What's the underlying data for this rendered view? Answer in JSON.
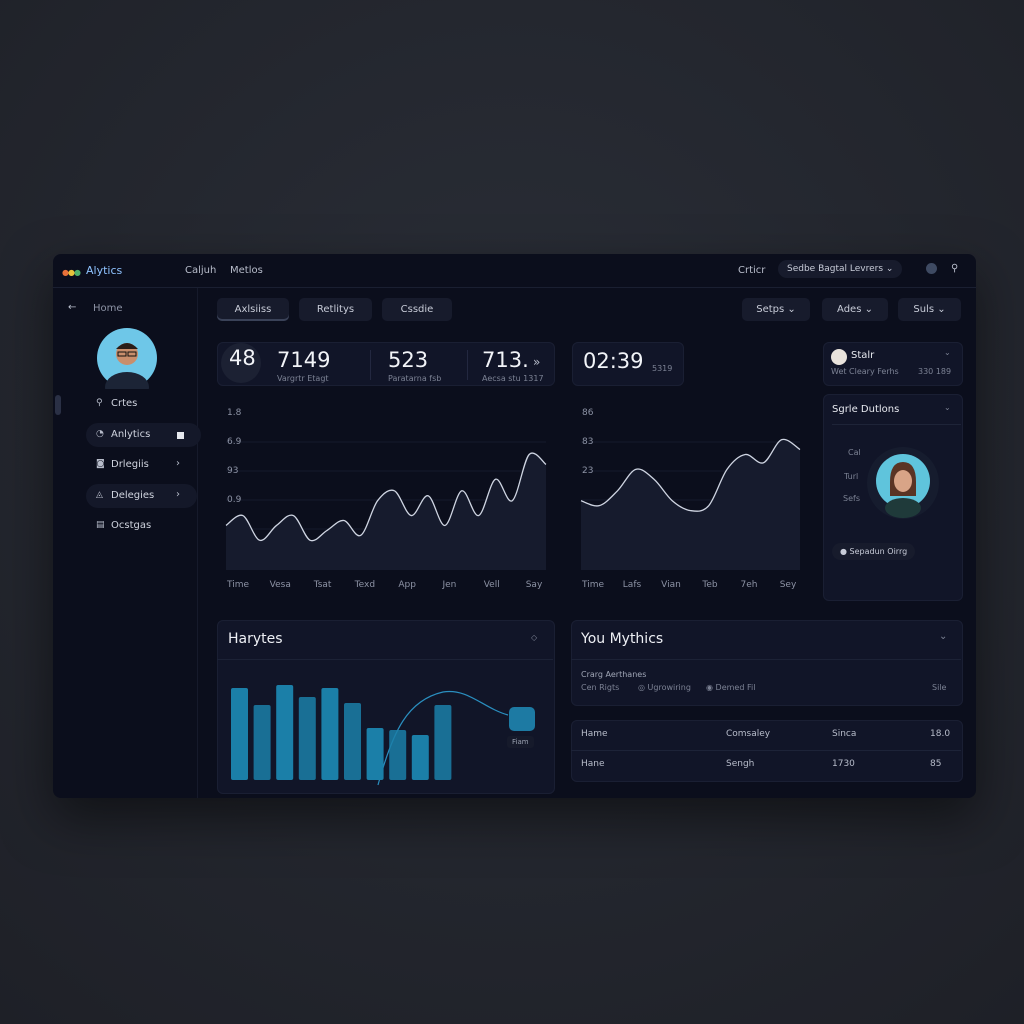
{
  "header": {
    "logo": "Alytics",
    "nav": [
      "Caljuh",
      "Metlos"
    ],
    "label": "Crticr",
    "account": "Sedbe Bagtal Levrers"
  },
  "sidebar": {
    "back": "Home",
    "items": [
      "Crtes",
      "Anlytics",
      "Drlegiis",
      "Delegies",
      "Ocstgas"
    ]
  },
  "toolbar": {
    "tabs": [
      "Axlsiiss",
      "Retlitys",
      "Cssdie"
    ],
    "filters": [
      "Setps",
      "Ades",
      "Suls"
    ]
  },
  "stats": [
    {
      "value": "48"
    },
    {
      "value": "7149",
      "label": "Vargrtr Etagt"
    },
    {
      "value": "523",
      "label": "Paratarna fsb"
    },
    {
      "value": "713.",
      "label": "Aecsa stu 1317"
    },
    {
      "value": "02:39",
      "label": "5319"
    }
  ],
  "charts": [
    {
      "type": "line",
      "y_labels": [
        "1.8",
        "6.9",
        "93",
        "0.9"
      ],
      "x_labels": [
        "Time",
        "Vesa",
        "Tsat",
        "Texd",
        "App",
        "Jen",
        "Vell",
        "Say"
      ],
      "ylim": [
        0,
        100
      ],
      "values": [
        27,
        33,
        18,
        27,
        33,
        18,
        24,
        30,
        21,
        42,
        48,
        33,
        45,
        27,
        48,
        33,
        55,
        42,
        70,
        64
      ],
      "color": "#cfd5e2"
    },
    {
      "type": "line",
      "y_labels": [
        "86",
        "83",
        "23"
      ],
      "x_labels": [
        "Time",
        "Lafs",
        "Vian",
        "Teb",
        "7eh",
        "Sey"
      ],
      "ylim": [
        0,
        100
      ],
      "values": [
        42,
        39,
        48,
        61,
        55,
        42,
        36,
        39,
        61,
        70,
        65,
        79,
        73
      ],
      "color": "#cfd5e2"
    }
  ],
  "bar_panel": {
    "title": "Harytes",
    "type": "bar",
    "ylim": [
      0,
      100
    ],
    "values": [
      92,
      75,
      95,
      83,
      92,
      77,
      52,
      50,
      45,
      75
    ],
    "color": "#1b7fa8",
    "badge": "Fiam"
  },
  "profile": {
    "name": "Stalr",
    "meta": "Wet Cleary Ferhs",
    "count": "330 189",
    "section": "Sgrle Dutlons",
    "labels": [
      "Cal",
      "Turl",
      "Sefs"
    ],
    "button": "Sepadun Oirrg"
  },
  "metrics": {
    "title": "You Mythics",
    "subtitle": "Crarg Aerthanes",
    "tags": [
      "Cen Rigts",
      "Ugrowiring",
      "Demed Fil"
    ],
    "side": "Sile"
  },
  "table": {
    "rows": [
      [
        "Hame",
        "Comsaley",
        "Sinca",
        "18.0"
      ],
      [
        "Hane",
        "Sengh",
        "1730",
        "85"
      ]
    ]
  }
}
